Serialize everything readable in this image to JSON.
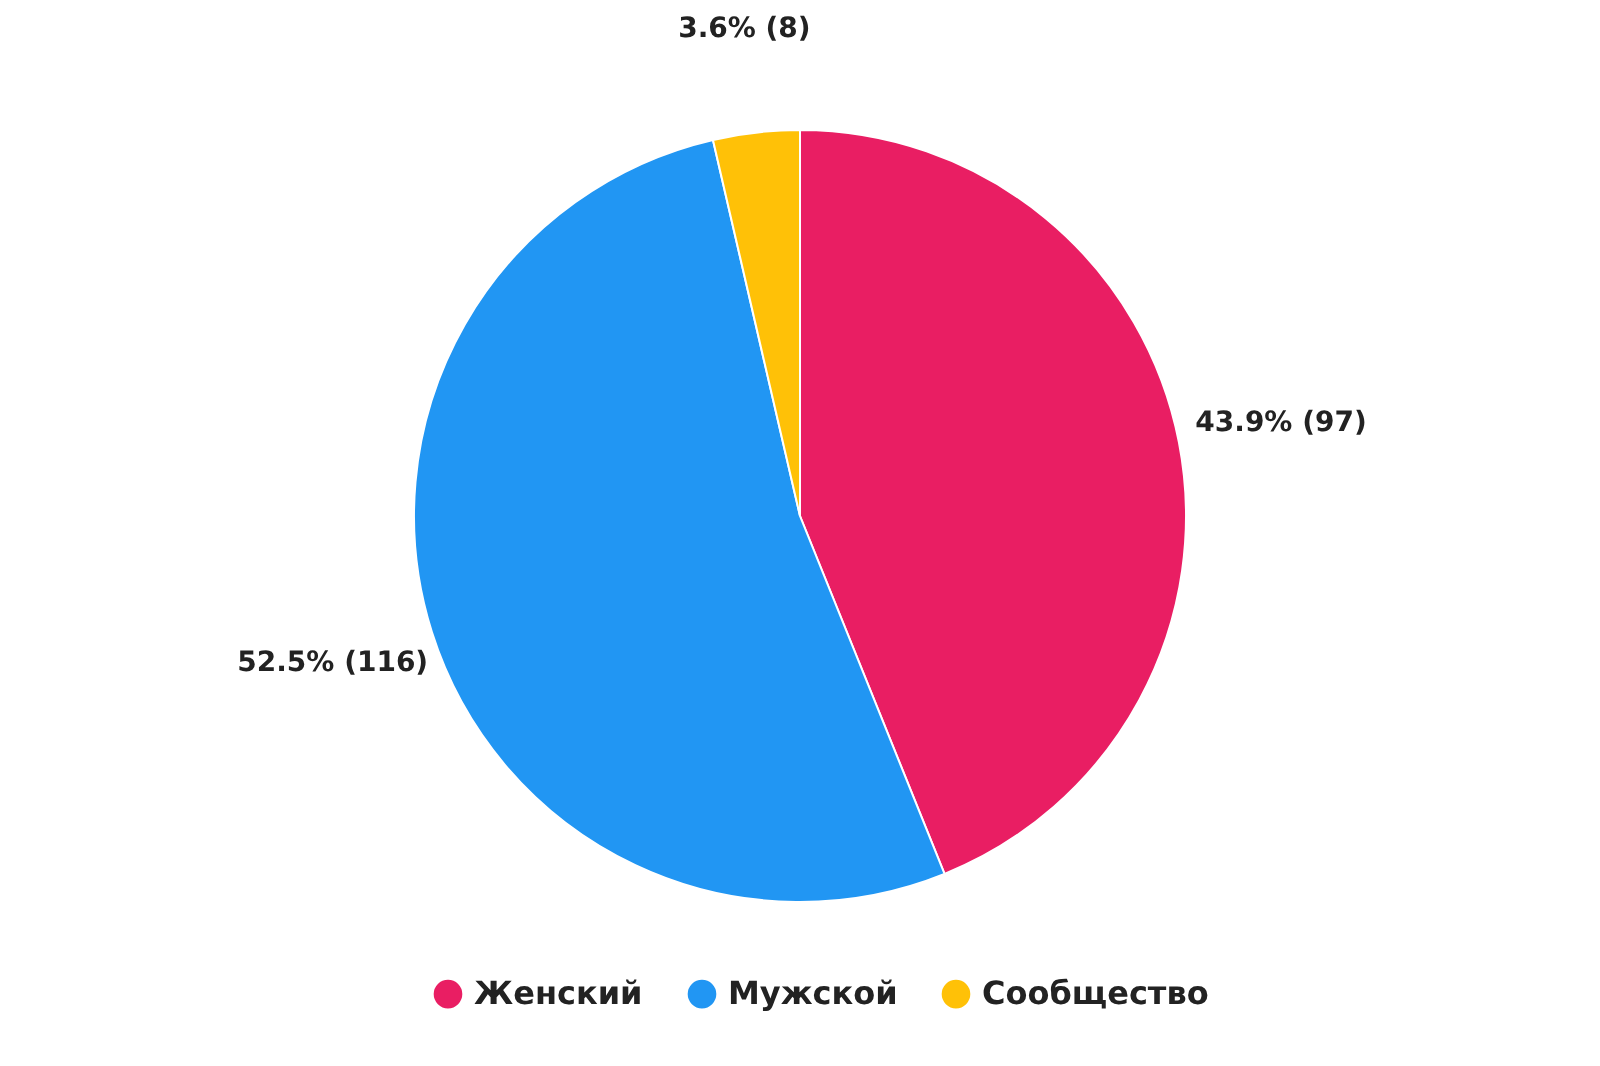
{
  "chart_data": {
    "type": "pie",
    "categories": [
      "Женский",
      "Мужской",
      "Сообщество"
    ],
    "values": [
      97,
      116,
      8
    ],
    "colors": [
      "#e91e63",
      "#2196f3",
      "#ffc107"
    ],
    "value_labels": [
      "43.9% (97)",
      "52.5% (116)",
      "3.6% (8)"
    ],
    "legend": "bottom"
  }
}
